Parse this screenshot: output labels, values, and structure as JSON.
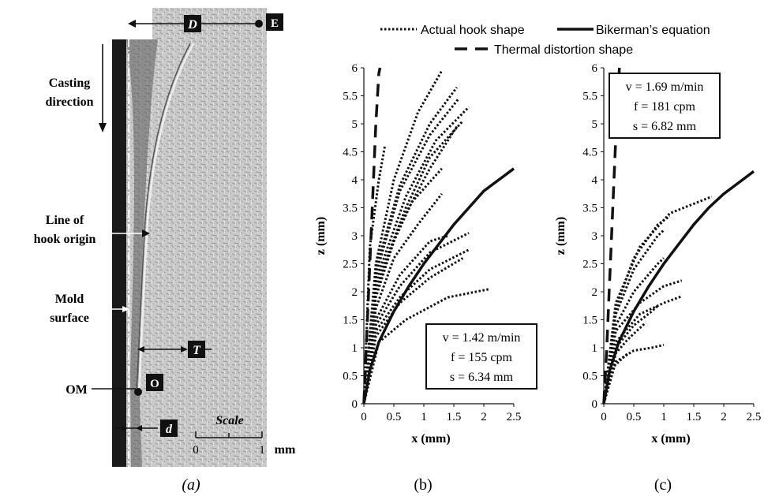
{
  "micrograph": {
    "labels": {
      "D": "D",
      "E": "E",
      "casting_direction_1": "Casting",
      "casting_direction_2": "direction",
      "line_of_hook_origin_1": "Line of",
      "line_of_hook_origin_2": "hook origin",
      "mold_surface_1": "Mold",
      "mold_surface_2": "surface",
      "T": "T",
      "OM": "OM",
      "O": "O",
      "d": "d",
      "scale": "Scale",
      "scale_0": "0",
      "scale_1": "1",
      "scale_unit": "mm"
    },
    "caption": "(a)"
  },
  "legend": {
    "actual": "Actual hook shape",
    "bikerman": "Bikerman’s equation",
    "thermal": "Thermal distortion shape"
  },
  "chart_data": [
    {
      "type": "line",
      "panel": "(b)",
      "xlabel": "x (mm)",
      "ylabel": "z (mm)",
      "xlim": [
        0,
        2.5
      ],
      "ylim": [
        0,
        6
      ],
      "xticks": [
        "0",
        "0.5",
        "1",
        "1.5",
        "2",
        "2.5"
      ],
      "yticks": [
        "0",
        "0.5",
        "1",
        "1.5",
        "2",
        "2.5",
        "3",
        "3.5",
        "4",
        "4.5",
        "5",
        "5.5",
        "6"
      ],
      "params": [
        "v = 1.42 m/min",
        "f = 155 cpm",
        "s = 6.34 mm"
      ],
      "bikerman": [
        [
          0,
          0
        ],
        [
          0.1,
          0.6
        ],
        [
          0.25,
          1.1
        ],
        [
          0.5,
          1.65
        ],
        [
          0.75,
          2.1
        ],
        [
          1,
          2.5
        ],
        [
          1.25,
          2.85
        ],
        [
          1.5,
          3.2
        ],
        [
          1.75,
          3.5
        ],
        [
          2,
          3.8
        ],
        [
          2.25,
          4.0
        ],
        [
          2.5,
          4.2
        ]
      ],
      "thermal": [
        [
          0,
          0
        ],
        [
          0.04,
          1
        ],
        [
          0.08,
          2
        ],
        [
          0.12,
          3
        ],
        [
          0.16,
          4
        ],
        [
          0.2,
          5
        ],
        [
          0.25,
          5.9
        ],
        [
          0.27,
          6
        ]
      ],
      "hooks": [
        [
          [
            0,
            0
          ],
          [
            0.2,
            2.5
          ],
          [
            0.5,
            4.0
          ],
          [
            0.9,
            5.2
          ],
          [
            1.3,
            5.95
          ]
        ],
        [
          [
            0,
            0
          ],
          [
            0.2,
            2.4
          ],
          [
            0.6,
            3.9
          ],
          [
            1.1,
            5.0
          ],
          [
            1.55,
            5.65
          ]
        ],
        [
          [
            0,
            0
          ],
          [
            0.2,
            2.3
          ],
          [
            0.6,
            3.8
          ],
          [
            1.1,
            4.8
          ],
          [
            1.58,
            5.45
          ]
        ],
        [
          [
            0,
            0
          ],
          [
            0.2,
            2.2
          ],
          [
            0.7,
            3.7
          ],
          [
            1.2,
            4.7
          ],
          [
            1.75,
            5.3
          ]
        ],
        [
          [
            0,
            0
          ],
          [
            0.2,
            2.1
          ],
          [
            0.7,
            3.5
          ],
          [
            1.1,
            4.4
          ],
          [
            1.65,
            5.05
          ]
        ],
        [
          [
            0,
            0
          ],
          [
            0.2,
            2.0
          ],
          [
            0.6,
            3.2
          ],
          [
            1.1,
            4.2
          ],
          [
            1.55,
            4.95
          ]
        ],
        [
          [
            0,
            0
          ],
          [
            0.2,
            1.9
          ],
          [
            0.5,
            2.9
          ],
          [
            0.8,
            3.6
          ],
          [
            1.3,
            4.2
          ]
        ],
        [
          [
            0,
            0
          ],
          [
            0.2,
            1.7
          ],
          [
            0.5,
            2.6
          ],
          [
            0.9,
            3.2
          ],
          [
            1.3,
            3.75
          ]
        ],
        [
          [
            0,
            0
          ],
          [
            0.2,
            1.5
          ],
          [
            0.6,
            2.3
          ],
          [
            1.1,
            2.9
          ],
          [
            1.4,
            3.0
          ]
        ],
        [
          [
            0,
            0
          ],
          [
            0.2,
            1.4
          ],
          [
            0.6,
            2.1
          ],
          [
            1.1,
            2.7
          ],
          [
            1.75,
            3.05
          ]
        ],
        [
          [
            0,
            0
          ],
          [
            0.2,
            1.3
          ],
          [
            0.6,
            1.9
          ],
          [
            1.1,
            2.4
          ],
          [
            1.75,
            2.75
          ]
        ],
        [
          [
            0,
            0
          ],
          [
            0.2,
            1.2
          ],
          [
            0.6,
            1.8
          ],
          [
            1.1,
            2.25
          ],
          [
            1.65,
            2.6
          ]
        ],
        [
          [
            0,
            0
          ],
          [
            0.25,
            1.1
          ],
          [
            0.7,
            1.5
          ],
          [
            1.4,
            1.9
          ],
          [
            2.1,
            2.05
          ]
        ],
        [
          [
            0,
            0
          ],
          [
            0.1,
            2.8
          ],
          [
            0.25,
            4.0
          ],
          [
            0.35,
            4.6
          ]
        ]
      ]
    },
    {
      "type": "line",
      "panel": "(c)",
      "xlabel": "x (mm)",
      "ylabel": "z (mm)",
      "xlim": [
        0,
        2.5
      ],
      "ylim": [
        0,
        6
      ],
      "xticks": [
        "0",
        "0.5",
        "1",
        "1.5",
        "2",
        "2.5"
      ],
      "yticks": [
        "0",
        "0.5",
        "1",
        "1.5",
        "2",
        "2.5",
        "3",
        "3.5",
        "4",
        "4.5",
        "5",
        "5.5",
        "6"
      ],
      "params": [
        "v = 1.69 m/min",
        "f = 181 cpm",
        "s = 6.82 mm"
      ],
      "bikerman": [
        [
          0,
          0
        ],
        [
          0.1,
          0.6
        ],
        [
          0.25,
          1.1
        ],
        [
          0.5,
          1.65
        ],
        [
          0.75,
          2.1
        ],
        [
          1,
          2.5
        ],
        [
          1.25,
          2.85
        ],
        [
          1.5,
          3.2
        ],
        [
          1.75,
          3.5
        ],
        [
          2,
          3.75
        ],
        [
          2.25,
          3.95
        ],
        [
          2.5,
          4.15
        ]
      ],
      "thermal": [
        [
          0,
          0
        ],
        [
          0.05,
          1
        ],
        [
          0.09,
          2
        ],
        [
          0.13,
          3
        ],
        [
          0.17,
          4
        ],
        [
          0.21,
          5
        ],
        [
          0.26,
          6
        ]
      ],
      "hooks": [
        [
          [
            0,
            0
          ],
          [
            0.2,
            1.8
          ],
          [
            0.6,
            2.8
          ],
          [
            1.1,
            3.4
          ],
          [
            1.8,
            3.7
          ]
        ],
        [
          [
            0,
            0
          ],
          [
            0.2,
            1.7
          ],
          [
            0.5,
            2.6
          ],
          [
            0.9,
            3.2
          ],
          [
            1.1,
            3.35
          ]
        ],
        [
          [
            0,
            0
          ],
          [
            0.2,
            1.6
          ],
          [
            0.5,
            2.4
          ],
          [
            0.9,
            3.0
          ],
          [
            1.0,
            3.1
          ]
        ],
        [
          [
            0,
            0
          ],
          [
            0.2,
            1.4
          ],
          [
            0.5,
            2.0
          ],
          [
            0.9,
            2.5
          ],
          [
            1.0,
            2.6
          ]
        ],
        [
          [
            0,
            0
          ],
          [
            0.2,
            1.3
          ],
          [
            0.6,
            1.8
          ],
          [
            1.0,
            2.1
          ],
          [
            1.3,
            2.2
          ]
        ],
        [
          [
            0,
            0
          ],
          [
            0.2,
            1.1
          ],
          [
            0.6,
            1.6
          ],
          [
            1.0,
            1.8
          ],
          [
            1.3,
            1.92
          ]
        ],
        [
          [
            0,
            0
          ],
          [
            0.2,
            1.0
          ],
          [
            0.5,
            1.4
          ],
          [
            0.8,
            1.65
          ],
          [
            0.9,
            1.75
          ]
        ],
        [
          [
            0,
            0
          ],
          [
            0.2,
            0.9
          ],
          [
            0.4,
            1.15
          ],
          [
            0.6,
            1.35
          ],
          [
            0.7,
            1.45
          ]
        ],
        [
          [
            0,
            0
          ],
          [
            0.2,
            0.75
          ],
          [
            0.5,
            0.95
          ],
          [
            0.8,
            1.0
          ],
          [
            1.0,
            1.05
          ]
        ],
        [
          [
            0,
            0
          ],
          [
            0.15,
            0.65
          ],
          [
            0.3,
            0.8
          ],
          [
            0.4,
            0.9
          ]
        ]
      ]
    }
  ]
}
